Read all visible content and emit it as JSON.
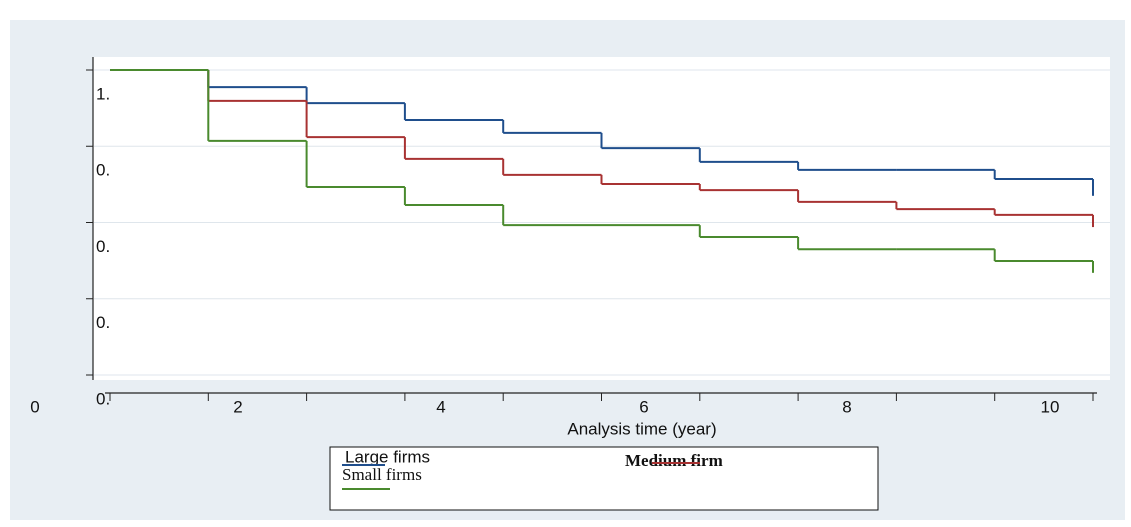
{
  "chart_data": {
    "type": "step",
    "xlabel": "Analysis time (year)",
    "x": [
      0,
      1,
      2,
      3,
      4,
      5,
      6,
      7,
      8,
      9,
      10
    ],
    "series": [
      {
        "name": "Large firms",
        "color": "#1f4e8c",
        "values": [
          1,
          0.955,
          0.913,
          0.869,
          0.835,
          0.795,
          0.759,
          0.738,
          0.738,
          0.714,
          0.67
        ]
      },
      {
        "name": "Medium firm",
        "color": "#a83232",
        "values": [
          1,
          0.919,
          0.824,
          0.767,
          0.725,
          0.701,
          0.685,
          0.654,
          0.635,
          0.62,
          0.588
        ]
      },
      {
        "name": "Small firms",
        "color": "#4a8a2e",
        "values": [
          1,
          0.814,
          0.693,
          0.646,
          0.593,
          0.593,
          0.562,
          0.53,
          0.53,
          0.499,
          0.468
        ]
      }
    ],
    "xlim": [
      0,
      10
    ],
    "xticks": [
      0,
      2,
      4,
      6,
      8,
      10
    ],
    "xminor_ticks": [
      1,
      3,
      5,
      7,
      9
    ],
    "ylim": [
      0.2,
      1
    ],
    "yticks": [
      {
        "value": 1,
        "label": "1."
      },
      {
        "value": 0.8,
        "label": "0."
      },
      {
        "value": 0.6,
        "label": "0."
      },
      {
        "value": 0.4,
        "label": "0."
      },
      {
        "value": 0.2,
        "label": "0."
      }
    ],
    "grid": true
  }
}
